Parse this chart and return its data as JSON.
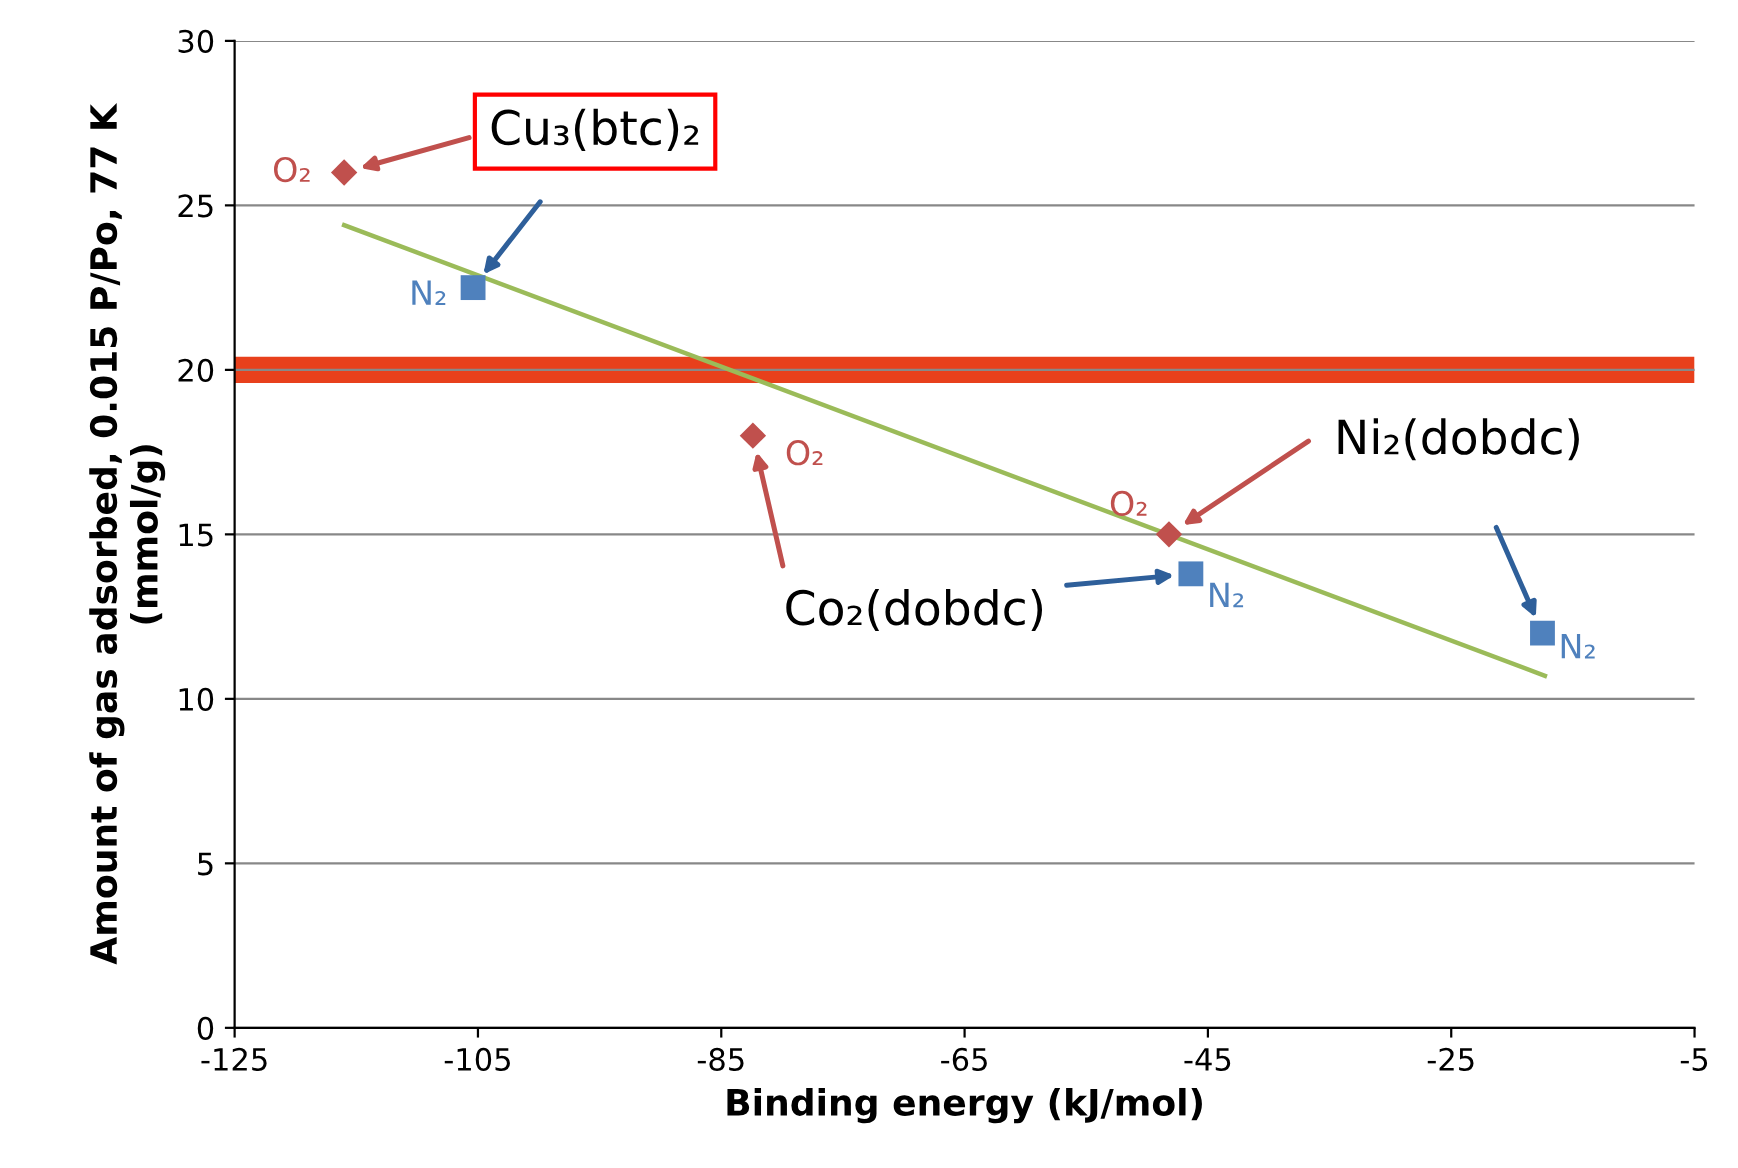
{
  "chart_data": {
    "type": "scatter",
    "xlabel": "Binding energy (kJ/mol)",
    "ylabel": "Amount of gas adsorbed, 0.015 P/Po, 77 K\n(mmol/g)",
    "series": [
      {
        "name": "O₂",
        "color": "#c0504d",
        "marker": "diamond",
        "x": [
          -116,
          -82.4,
          -48.2
        ],
        "values": [
          26,
          18,
          15
        ]
      },
      {
        "name": "N₂",
        "color": "#4f81bd",
        "marker": "square",
        "x": [
          -105.4,
          -46.4,
          -17.5
        ],
        "values": [
          22.5,
          13.8,
          12
        ]
      },
      {
        "type": "line",
        "color": "#9bbb59",
        "marker": "none",
        "x": [
          -116,
          -17.3
        ],
        "values": [
          24.4,
          10.7
        ]
      }
    ],
    "annotations": [
      "Cu₃(btc)₂",
      "Co₂(dobdc)",
      "Ni₂(dobdc)"
    ],
    "bands": [
      {
        "axis": "y",
        "from": 19.6,
        "to": 20.4,
        "color": "#e8401c"
      }
    ],
    "xlim": [
      -125,
      -5
    ],
    "xticks": [
      -125,
      -105,
      -85,
      -65,
      -45,
      -25,
      -5
    ],
    "ylim": [
      0,
      30
    ],
    "yticks": [
      0,
      5,
      10,
      15,
      20,
      25,
      30
    ],
    "grid": "y"
  }
}
